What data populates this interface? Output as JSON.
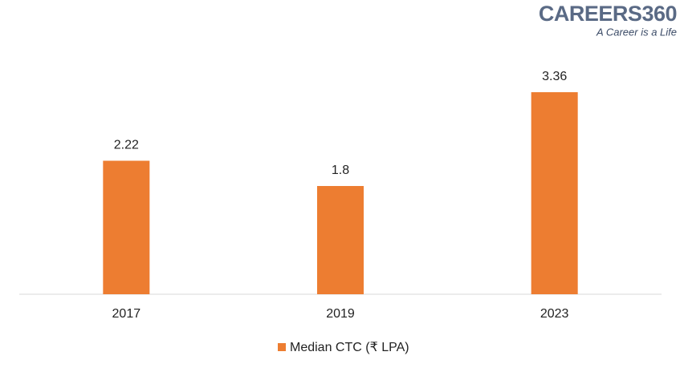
{
  "chart_data": {
    "type": "bar",
    "annotations": [
      "CAREERS360",
      "A Career is a Life"
    ],
    "categories": [
      "2017",
      "2019",
      "2023"
    ],
    "series": [
      {
        "name": "Median CTC (₹ LPA)",
        "color": "#ed7d31",
        "values": [
          2.22,
          1.8,
          3.36
        ]
      }
    ],
    "ylim": [
      0,
      4
    ],
    "legend": "bottom"
  }
}
